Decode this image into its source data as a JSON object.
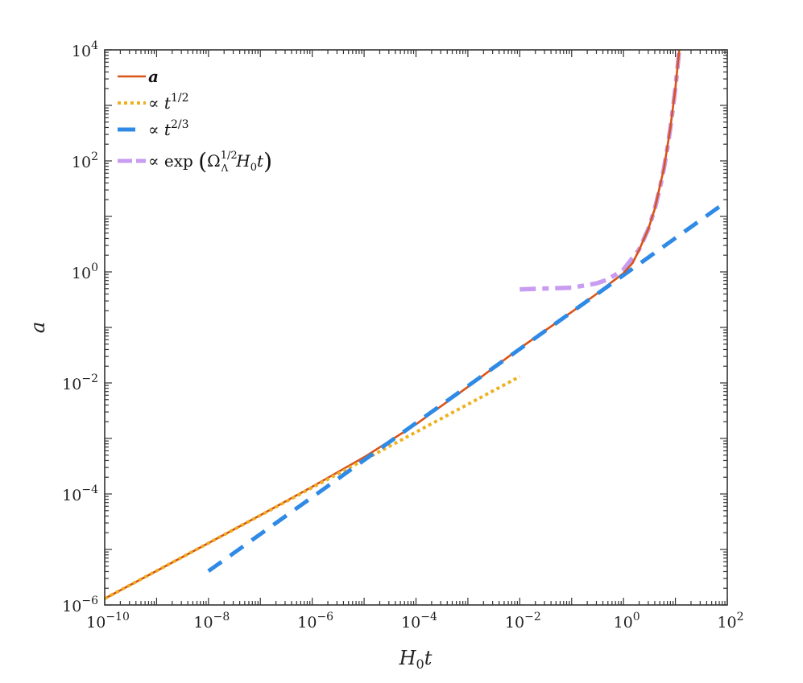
{
  "chart_data": {
    "type": "line",
    "xscale": "log",
    "yscale": "log",
    "xlim": [
      1e-10,
      100
    ],
    "ylim": [
      1e-06,
      10000
    ],
    "xlabel": {
      "main": "H",
      "sub": "0",
      "tail": "t"
    },
    "ylabel": "a",
    "grid": false,
    "legend_position": "top-left",
    "xticks": [
      {
        "value": 1e-10,
        "base": "10",
        "exp": "−10"
      },
      {
        "value": 1e-08,
        "base": "10",
        "exp": "−8"
      },
      {
        "value": 1e-06,
        "base": "10",
        "exp": "−6"
      },
      {
        "value": 0.0001,
        "base": "10",
        "exp": "−4"
      },
      {
        "value": 0.01,
        "base": "10",
        "exp": "−2"
      },
      {
        "value": 1,
        "base": "10",
        "exp": "0"
      },
      {
        "value": 100,
        "base": "10",
        "exp": "2"
      }
    ],
    "yticks": [
      {
        "value": 1e-06,
        "base": "10",
        "exp": "−6"
      },
      {
        "value": 0.0001,
        "base": "10",
        "exp": "−4"
      },
      {
        "value": 0.01,
        "base": "10",
        "exp": "−2"
      },
      {
        "value": 1,
        "base": "10",
        "exp": "0"
      },
      {
        "value": 100,
        "base": "10",
        "exp": "2"
      },
      {
        "value": 10000,
        "base": "10",
        "exp": "4"
      }
    ],
    "series": [
      {
        "name": "a",
        "style": "solid",
        "color": "#d95319",
        "legend": {
          "pre": "",
          "var": "a",
          "sup": ""
        },
        "x": [
          1e-10,
          1e-09,
          1e-08,
          1e-07,
          1e-06,
          1e-05,
          0.0001,
          0.001,
          0.01,
          0.1,
          0.3,
          0.5,
          1,
          1.5,
          2,
          3,
          4,
          6,
          8,
          10,
          12
        ],
        "y": [
          1.3e-06,
          4.1e-06,
          1.3e-05,
          4.15e-05,
          0.000135,
          0.00046,
          0.0018,
          0.0085,
          0.042,
          0.19,
          0.4,
          0.58,
          0.95,
          1.45,
          2.5,
          5.9,
          13.6,
          73,
          390,
          2090,
          11200
        ]
      },
      {
        "name": "∝ t^(1/2)",
        "style": "dotted",
        "color": "#edb120",
        "legend": {
          "pre": "∝ ",
          "var": "t",
          "sup": "1/2"
        },
        "x": [
          1e-10,
          1e-08,
          1e-06,
          0.0001,
          0.01
        ],
        "y": [
          1.3e-06,
          1.3e-05,
          0.00013,
          0.0013,
          0.013
        ]
      },
      {
        "name": "∝ t^(2/3)",
        "style": "dashed",
        "color": "#2f8ae6",
        "legend": {
          "pre": "∝ ",
          "var": "t",
          "sup": "2/3"
        },
        "x": [
          1e-08,
          1e-06,
          0.0001,
          0.01,
          1,
          100
        ],
        "y": [
          4.07e-06,
          8.76e-05,
          0.00189,
          0.0407,
          0.876,
          18.9
        ]
      },
      {
        "name": "∝ exp(Ω_Λ^(1/2) H_0 t)",
        "style": "dashdot",
        "color": "#c89cf0",
        "legend": {
          "pre": "∝ exp ",
          "omega": "Ω",
          "omega_sup": "1/2",
          "omega_sub": "Λ",
          "h": "H",
          "h_sub": "0",
          "t": "t",
          "lparen": "(",
          "rparen": ")"
        },
        "x": [
          0.01,
          0.1,
          0.3,
          0.5,
          1,
          2,
          3,
          4,
          5,
          6,
          7,
          8,
          9,
          10,
          11,
          12
        ],
        "y": [
          0.484,
          0.52,
          0.62,
          0.73,
          1.11,
          2.55,
          5.9,
          13.6,
          31.6,
          73,
          169,
          390,
          904,
          2090,
          4840,
          11200
        ]
      }
    ]
  }
}
